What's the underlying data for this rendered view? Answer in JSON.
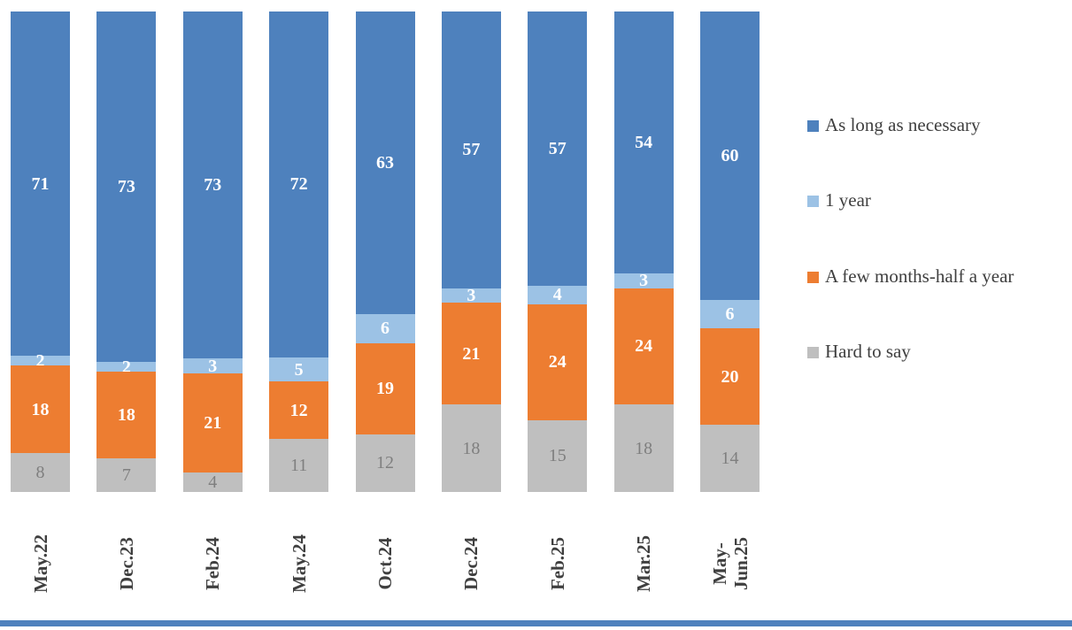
{
  "chart_data": {
    "type": "bar",
    "stacked": true,
    "percent": true,
    "title": "",
    "xlabel": "",
    "ylabel": "",
    "grid": false,
    "legend_position": "right",
    "categories": [
      "May.22",
      "Dec.23",
      "Feb.24",
      "May.24",
      "Oct.24",
      "Dec.24",
      "Feb.25",
      "Mar.25",
      "May-\nJun.25"
    ],
    "series": [
      {
        "name": "As long as necessary",
        "color": "#4E81BD",
        "label_color": "#FFFFFF",
        "values": [
          71,
          73,
          73,
          72,
          63,
          57,
          57,
          54,
          60
        ]
      },
      {
        "name": "1 year",
        "color": "#9CC2E5",
        "label_color": "#FFFFFF",
        "values": [
          2,
          2,
          3,
          5,
          6,
          3,
          4,
          3,
          6
        ]
      },
      {
        "name": "A few months-half a year",
        "color": "#ED7D31",
        "label_color": "#FFFFFF",
        "values": [
          18,
          18,
          21,
          12,
          19,
          21,
          24,
          24,
          20
        ]
      },
      {
        "name": "Hard to say",
        "color": "#BFBFBF",
        "label_color": "#7F7F7F",
        "values": [
          8,
          7,
          4,
          11,
          12,
          18,
          15,
          18,
          14
        ]
      }
    ],
    "colors": {
      "accent_bar": "#4E81BD",
      "axis_label_text": "#3F3F3F",
      "legend_text": "#3F3F3F"
    }
  }
}
